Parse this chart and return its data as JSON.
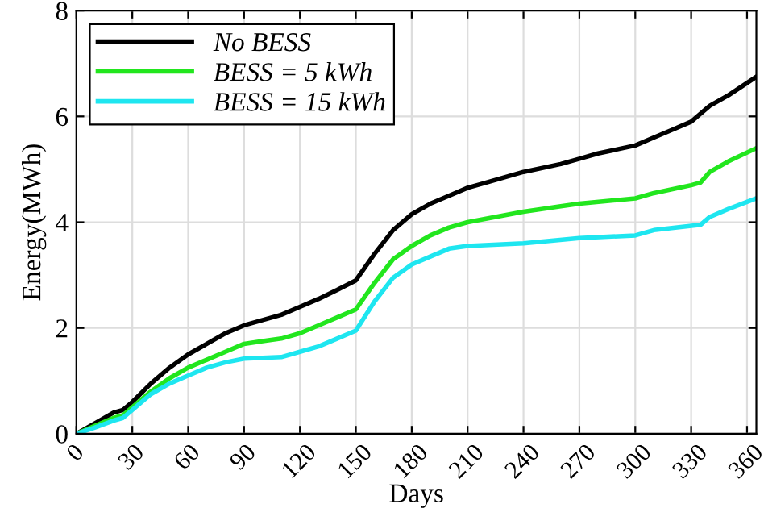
{
  "chart_data": {
    "type": "line",
    "xlabel": "Days",
    "ylabel": "Energy(MWh)",
    "xlim": [
      0,
      365
    ],
    "ylim": [
      0,
      8
    ],
    "xticks": [
      0,
      30,
      60,
      90,
      120,
      150,
      180,
      210,
      240,
      270,
      300,
      330,
      360
    ],
    "yticks": [
      0,
      2,
      4,
      6,
      8
    ],
    "grid": true,
    "legend": "top left",
    "marker": "none",
    "line_style": "solid",
    "series": [
      {
        "name": "No BESS",
        "color": "#000000",
        "x": [
          0,
          10,
          20,
          25,
          30,
          40,
          50,
          60,
          70,
          80,
          90,
          100,
          110,
          120,
          130,
          140,
          150,
          160,
          170,
          180,
          190,
          200,
          210,
          220,
          240,
          260,
          270,
          280,
          300,
          310,
          320,
          330,
          340,
          350,
          365
        ],
        "values": [
          0,
          0.2,
          0.4,
          0.45,
          0.6,
          0.95,
          1.25,
          1.5,
          1.7,
          1.9,
          2.05,
          2.15,
          2.25,
          2.4,
          2.55,
          2.72,
          2.9,
          3.4,
          3.85,
          4.15,
          4.35,
          4.5,
          4.65,
          4.75,
          4.95,
          5.1,
          5.2,
          5.3,
          5.45,
          5.6,
          5.75,
          5.9,
          6.2,
          6.4,
          6.75
        ]
      },
      {
        "name": "BESS = 5 kWh",
        "color": "#22e61e",
        "x": [
          0,
          10,
          20,
          25,
          30,
          40,
          50,
          60,
          70,
          80,
          90,
          100,
          110,
          120,
          130,
          140,
          150,
          160,
          170,
          180,
          190,
          200,
          210,
          240,
          260,
          270,
          300,
          310,
          330,
          335,
          340,
          350,
          365
        ],
        "values": [
          0,
          0.15,
          0.3,
          0.35,
          0.5,
          0.8,
          1.05,
          1.25,
          1.4,
          1.55,
          1.7,
          1.75,
          1.8,
          1.9,
          2.05,
          2.2,
          2.35,
          2.85,
          3.3,
          3.55,
          3.75,
          3.9,
          4.0,
          4.2,
          4.3,
          4.35,
          4.45,
          4.55,
          4.7,
          4.75,
          4.95,
          5.15,
          5.4
        ]
      },
      {
        "name": "BESS = 15 kWh",
        "color": "#1ee6f0",
        "x": [
          0,
          10,
          20,
          25,
          30,
          40,
          50,
          60,
          70,
          80,
          90,
          110,
          120,
          130,
          140,
          150,
          160,
          170,
          180,
          190,
          200,
          210,
          240,
          270,
          300,
          310,
          335,
          340,
          350,
          365
        ],
        "values": [
          0,
          0.12,
          0.25,
          0.3,
          0.45,
          0.75,
          0.95,
          1.1,
          1.25,
          1.35,
          1.42,
          1.45,
          1.55,
          1.65,
          1.8,
          1.95,
          2.5,
          2.95,
          3.2,
          3.35,
          3.5,
          3.55,
          3.6,
          3.7,
          3.75,
          3.85,
          3.95,
          4.1,
          4.25,
          4.45
        ]
      }
    ]
  }
}
